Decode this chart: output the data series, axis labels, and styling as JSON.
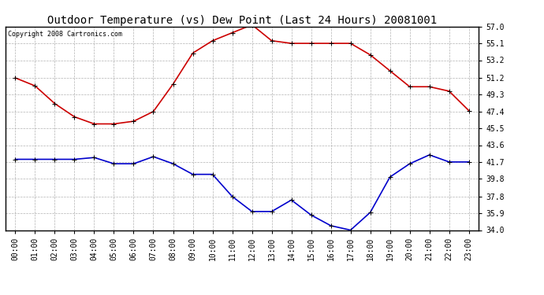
{
  "title": "Outdoor Temperature (vs) Dew Point (Last 24 Hours) 20081001",
  "copyright": "Copyright 2008 Cartronics.com",
  "hours": [
    "00:00",
    "01:00",
    "02:00",
    "03:00",
    "04:00",
    "05:00",
    "06:00",
    "07:00",
    "08:00",
    "09:00",
    "10:00",
    "11:00",
    "12:00",
    "13:00",
    "14:00",
    "15:00",
    "16:00",
    "17:00",
    "18:00",
    "19:00",
    "20:00",
    "21:00",
    "22:00",
    "23:00"
  ],
  "temp": [
    51.2,
    50.3,
    48.3,
    46.8,
    46.0,
    46.0,
    46.3,
    47.4,
    50.5,
    54.0,
    55.4,
    56.3,
    57.2,
    55.4,
    55.1,
    55.1,
    55.1,
    55.1,
    53.8,
    52.0,
    50.2,
    50.2,
    49.7,
    47.5
  ],
  "dewpoint": [
    42.0,
    42.0,
    42.0,
    42.0,
    42.2,
    41.5,
    41.5,
    42.3,
    41.5,
    40.3,
    40.3,
    37.8,
    36.1,
    36.1,
    37.4,
    35.7,
    34.5,
    34.0,
    36.0,
    40.0,
    41.5,
    42.5,
    41.7,
    41.7
  ],
  "temp_color": "#cc0000",
  "dewpoint_color": "#0000cc",
  "background_color": "#ffffff",
  "plot_bg_color": "#ffffff",
  "grid_color": "#aaaaaa",
  "ylim": [
    34.0,
    57.0
  ],
  "yticks": [
    34.0,
    35.9,
    37.8,
    39.8,
    41.7,
    43.6,
    45.5,
    47.4,
    49.3,
    51.2,
    53.2,
    55.1,
    57.0
  ],
  "title_fontsize": 10,
  "tick_fontsize": 7,
  "copyright_fontsize": 6,
  "marker": "+",
  "markersize": 5,
  "linewidth": 1.2
}
